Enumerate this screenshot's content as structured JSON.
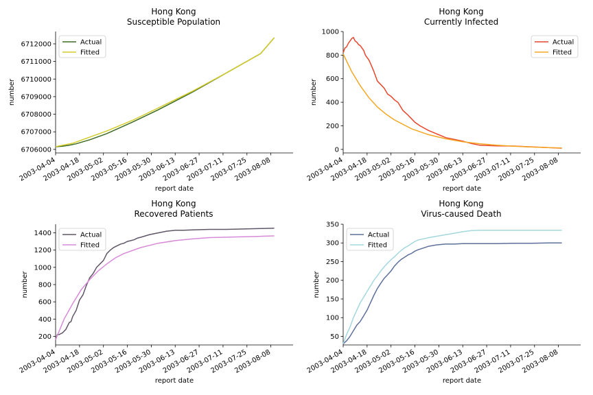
{
  "chart_data": [
    {
      "type": "line",
      "title": "Hong Kong",
      "subtitle": "Susceptible Population",
      "xlabel": "report date",
      "ylabel": "number",
      "x_ticks": [
        "2003-04-04",
        "2003-04-18",
        "2003-05-02",
        "2003-05-16",
        "2003-05-30",
        "2003-06-13",
        "2003-06-27",
        "2003-07-11",
        "2003-07-25",
        "2003-08-08"
      ],
      "y_ticks": [
        6706000,
        6707000,
        6708000,
        6709000,
        6710000,
        6711000,
        6712000
      ],
      "ylim": [
        6705800,
        6712700
      ],
      "x_range_days": [
        0,
        139
      ],
      "legend": "upper-left",
      "series": [
        {
          "name": "Actual",
          "color": "#3d6b22",
          "x": [
            0,
            4,
            8,
            12,
            20,
            30,
            45,
            60,
            80,
            100,
            120,
            128
          ],
          "y": [
            6706150,
            6706180,
            6706240,
            6706320,
            6706550,
            6706900,
            6707550,
            6708250,
            6709250,
            6710350,
            6711450,
            6712350
          ]
        },
        {
          "name": "Fitted",
          "color": "#d4cc2a",
          "x": [
            0,
            10,
            20,
            30,
            45,
            60,
            80,
            100,
            120,
            128
          ],
          "y": [
            6706160,
            6706350,
            6706700,
            6707050,
            6707650,
            6708350,
            6709300,
            6710350,
            6711450,
            6712350
          ]
        }
      ]
    },
    {
      "type": "line",
      "title": "Hong Kong",
      "subtitle": "Currently Infected",
      "xlabel": "report date",
      "ylabel": "number",
      "x_ticks": [
        "2003-04-04",
        "2003-04-18",
        "2003-05-02",
        "2003-05-16",
        "2003-05-30",
        "2003-06-13",
        "2003-06-27",
        "2003-07-11",
        "2003-07-25",
        "2003-08-08"
      ],
      "y_ticks": [
        0,
        200,
        400,
        600,
        800,
        1000
      ],
      "ylim": [
        -30,
        1000
      ],
      "x_range_days": [
        0,
        139
      ],
      "legend": "upper-right",
      "series": [
        {
          "name": "Actual",
          "color": "#e8452a",
          "x": [
            0,
            1,
            2,
            3,
            4,
            5,
            6,
            7,
            8,
            9,
            10,
            11,
            12,
            13,
            14,
            15,
            16,
            18,
            20,
            22,
            24,
            26,
            28,
            30,
            32,
            35,
            38,
            40,
            42,
            45,
            50,
            55,
            60,
            65,
            70,
            75,
            80,
            90,
            100,
            110,
            120,
            128
          ],
          "y": [
            820,
            860,
            870,
            900,
            920,
            940,
            950,
            920,
            910,
            890,
            880,
            860,
            840,
            800,
            780,
            760,
            730,
            660,
            580,
            550,
            520,
            470,
            450,
            420,
            400,
            330,
            290,
            260,
            230,
            200,
            160,
            130,
            100,
            85,
            70,
            50,
            35,
            30,
            28,
            22,
            15,
            10
          ]
        },
        {
          "name": "Fitted",
          "color": "#f5a623",
          "x": [
            0,
            5,
            10,
            15,
            20,
            25,
            30,
            40,
            50,
            60,
            70,
            80,
            90,
            100,
            110,
            120,
            128
          ],
          "y": [
            810,
            660,
            540,
            440,
            360,
            300,
            250,
            175,
            125,
            90,
            65,
            48,
            36,
            27,
            20,
            15,
            12
          ]
        }
      ]
    },
    {
      "type": "line",
      "title": "Hong Kong",
      "subtitle": "Recovered Patients",
      "xlabel": "report date",
      "ylabel": "number",
      "x_ticks": [
        "2003-04-04",
        "2003-04-18",
        "2003-05-02",
        "2003-05-16",
        "2003-05-30",
        "2003-06-13",
        "2003-06-27",
        "2003-07-11",
        "2003-07-25",
        "2003-08-08"
      ],
      "y_ticks": [
        200,
        400,
        600,
        800,
        1000,
        1200,
        1400
      ],
      "ylim": [
        100,
        1500
      ],
      "x_range_days": [
        0,
        139
      ],
      "legend": "upper-left",
      "series": [
        {
          "name": "Actual",
          "color": "#5e5566",
          "x": [
            0,
            1,
            2,
            4,
            6,
            8,
            9,
            10,
            12,
            14,
            16,
            18,
            20,
            22,
            24,
            26,
            28,
            30,
            32,
            34,
            36,
            38,
            40,
            42,
            44,
            46,
            48,
            50,
            55,
            60,
            65,
            70,
            75,
            80,
            90,
            100,
            110,
            120,
            128
          ],
          "y": [
            160,
            220,
            220,
            240,
            280,
            360,
            370,
            430,
            500,
            620,
            680,
            790,
            880,
            930,
            1000,
            1040,
            1080,
            1160,
            1200,
            1230,
            1250,
            1270,
            1280,
            1300,
            1310,
            1320,
            1340,
            1350,
            1380,
            1400,
            1420,
            1430,
            1430,
            1435,
            1440,
            1440,
            1445,
            1450,
            1455
          ]
        },
        {
          "name": "Fitted",
          "color": "#d88ad8",
          "x": [
            0,
            5,
            10,
            15,
            20,
            25,
            30,
            35,
            40,
            50,
            60,
            70,
            80,
            90,
            100,
            110,
            120,
            128
          ],
          "y": [
            160,
            400,
            580,
            740,
            860,
            960,
            1040,
            1110,
            1160,
            1230,
            1280,
            1310,
            1330,
            1345,
            1350,
            1355,
            1360,
            1365
          ]
        }
      ]
    },
    {
      "type": "line",
      "title": "Hong Kong",
      "subtitle": "Virus-caused Death",
      "xlabel": "report date",
      "ylabel": "number",
      "x_ticks": [
        "2003-04-04",
        "2003-04-18",
        "2003-05-02",
        "2003-05-16",
        "2003-05-30",
        "2003-06-13",
        "2003-06-27",
        "2003-07-11",
        "2003-07-25",
        "2003-08-08"
      ],
      "y_ticks": [
        50,
        100,
        150,
        200,
        250,
        300,
        350
      ],
      "ylim": [
        27,
        350
      ],
      "x_range_days": [
        0,
        139
      ],
      "legend": "upper-left",
      "series": [
        {
          "name": "Actual",
          "color": "#5d6f9b",
          "x": [
            0,
            2,
            4,
            6,
            8,
            10,
            12,
            14,
            16,
            18,
            20,
            22,
            24,
            26,
            28,
            30,
            32,
            34,
            36,
            38,
            40,
            42,
            44,
            46,
            48,
            50,
            55,
            60,
            65,
            70,
            80,
            90,
            100,
            110,
            120,
            128
          ],
          "y": [
            30,
            38,
            50,
            65,
            80,
            90,
            105,
            120,
            140,
            160,
            178,
            192,
            205,
            215,
            225,
            238,
            248,
            256,
            262,
            268,
            272,
            278,
            282,
            285,
            288,
            291,
            295,
            297,
            297,
            298,
            298,
            298,
            299,
            299,
            300,
            300
          ]
        },
        {
          "name": "Fitted",
          "color": "#a3d8de",
          "x": [
            0,
            2,
            4,
            6,
            8,
            10,
            12,
            14,
            16,
            18,
            20,
            22,
            24,
            26,
            28,
            30,
            32,
            34,
            36,
            38,
            40,
            42,
            44,
            46,
            50,
            55,
            60,
            65,
            70,
            75,
            80,
            90,
            100,
            110,
            120,
            128
          ],
          "y": [
            30,
            55,
            75,
            100,
            120,
            140,
            155,
            170,
            185,
            200,
            212,
            225,
            236,
            246,
            255,
            263,
            272,
            280,
            287,
            292,
            298,
            304,
            308,
            310,
            314,
            318,
            322,
            326,
            330,
            333,
            334,
            334,
            334,
            334,
            334,
            334
          ]
        }
      ]
    }
  ]
}
